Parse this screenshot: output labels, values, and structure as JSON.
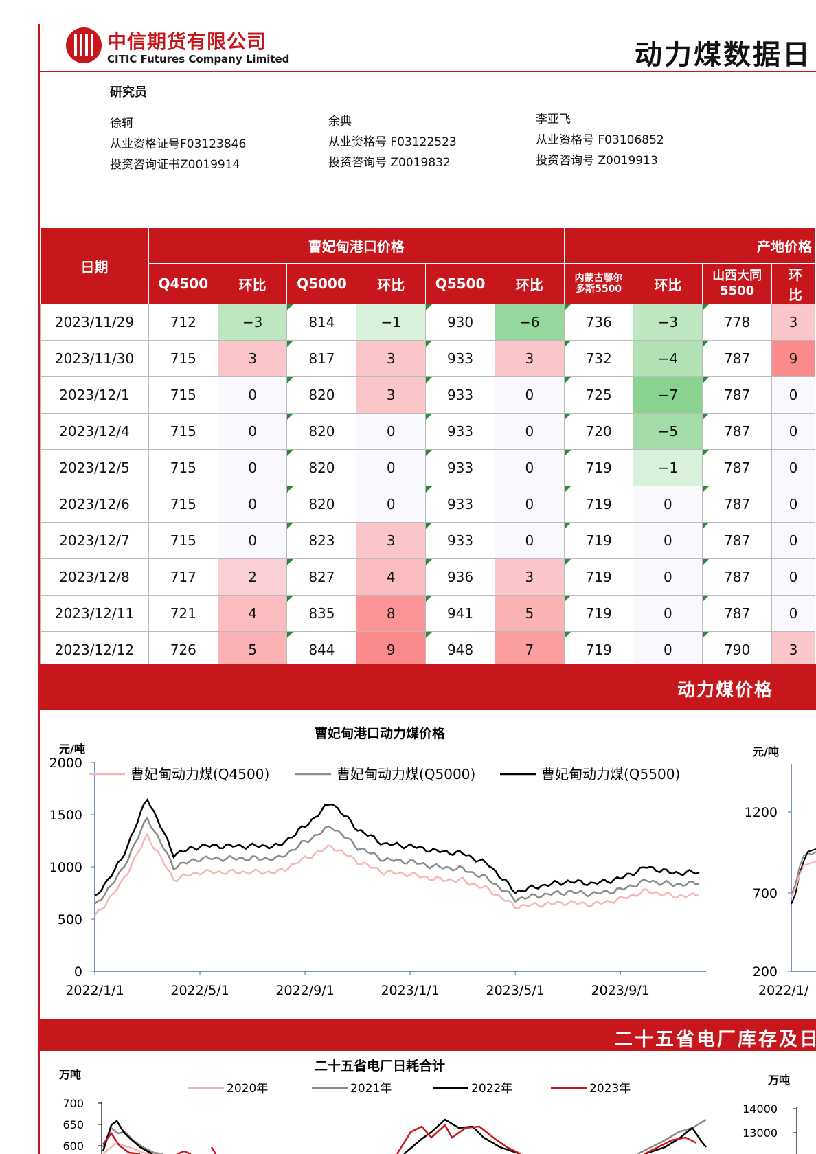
{
  "header": {
    "logo_cn": "中信期货有限公司",
    "logo_en": "CITIC Futures Company Limited",
    "title": "动力煤数据日"
  },
  "researchers": {
    "title": "研究员",
    "people": [
      {
        "name": "徐轲",
        "cert": "从业资格证号F03123846",
        "consult": "投资咨询证书Z0019914"
      },
      {
        "name": "余典",
        "cert": "从业资格号 F03122523",
        "consult": "投资咨询号 Z0019832"
      },
      {
        "name": "李亚飞",
        "cert": "从业资格号 F03106852",
        "consult": "投资咨询号 Z0019913"
      }
    ]
  },
  "price_table": {
    "date_header": "日期",
    "group_port": "曹妃甸港口价格",
    "group_origin": "产地价格",
    "columns": [
      "Q4500",
      "环比",
      "Q5000",
      "环比",
      "Q5500",
      "环比",
      "内蒙古鄂尔多斯5500",
      "环比",
      "山西大同5500",
      "环比"
    ],
    "col_inner_line1": "内蒙古鄂尔",
    "col_inner_line2": "多斯5500",
    "col_shanxi_line1": "山西大同",
    "col_shanxi_line2": "5500",
    "rows": [
      {
        "date": "2023/11/29",
        "v": [
          "712",
          "−3",
          "814",
          "−1",
          "930",
          "−6",
          "736",
          "−3",
          "778",
          "3"
        ]
      },
      {
        "date": "2023/11/30",
        "v": [
          "715",
          "3",
          "817",
          "3",
          "933",
          "3",
          "732",
          "−4",
          "787",
          "9"
        ]
      },
      {
        "date": "2023/12/1",
        "v": [
          "715",
          "0",
          "820",
          "3",
          "933",
          "0",
          "725",
          "−7",
          "787",
          "0"
        ]
      },
      {
        "date": "2023/12/4",
        "v": [
          "715",
          "0",
          "820",
          "0",
          "933",
          "0",
          "720",
          "−5",
          "787",
          "0"
        ]
      },
      {
        "date": "2023/12/5",
        "v": [
          "715",
          "0",
          "820",
          "0",
          "933",
          "0",
          "719",
          "−1",
          "787",
          "0"
        ]
      },
      {
        "date": "2023/12/6",
        "v": [
          "715",
          "0",
          "820",
          "0",
          "933",
          "0",
          "719",
          "0",
          "787",
          "0"
        ]
      },
      {
        "date": "2023/12/7",
        "v": [
          "715",
          "0",
          "823",
          "3",
          "933",
          "0",
          "719",
          "0",
          "787",
          "0"
        ]
      },
      {
        "date": "2023/12/8",
        "v": [
          "717",
          "2",
          "827",
          "4",
          "936",
          "3",
          "719",
          "0",
          "787",
          "0"
        ]
      },
      {
        "date": "2023/12/11",
        "v": [
          "721",
          "4",
          "835",
          "8",
          "941",
          "5",
          "719",
          "0",
          "787",
          "0"
        ]
      },
      {
        "date": "2023/12/12",
        "v": [
          "726",
          "5",
          "844",
          "9",
          "948",
          "7",
          "719",
          "0",
          "790",
          "3"
        ]
      }
    ]
  },
  "banners": {
    "price": "动力煤价格",
    "inventory": "二十五省电厂库存及日"
  },
  "chart_data": [
    {
      "type": "line",
      "title": "曹妃甸港口动力煤价格",
      "ylabel": "元/吨",
      "ylim": [
        0,
        2000
      ],
      "yticks": [
        "0",
        "500",
        "1000",
        "1500",
        "2000"
      ],
      "xticks": [
        "2022/1/1",
        "2022/5/1",
        "2022/9/1",
        "2023/1/1",
        "2023/5/1",
        "2023/9/1"
      ],
      "x": [
        "2022-01",
        "2022-02",
        "2022-03",
        "2022-04",
        "2022-05",
        "2022-06",
        "2022-07",
        "2022-08",
        "2022-09",
        "2022-10",
        "2022-11",
        "2022-12",
        "2023-01",
        "2023-02",
        "2023-03",
        "2023-04",
        "2023-05",
        "2023-06",
        "2023-07",
        "2023-08",
        "2023-09",
        "2023-10",
        "2023-11",
        "2023-12"
      ],
      "series": [
        {
          "name": "曹妃甸动力煤(Q4500)",
          "color": "#f2b8b8",
          "values": [
            520,
            840,
            1300,
            880,
            950,
            950,
            950,
            950,
            1080,
            1200,
            1050,
            950,
            930,
            880,
            870,
            780,
            620,
            640,
            660,
            640,
            690,
            770,
            720,
            726
          ]
        },
        {
          "name": "曹妃甸动力煤(Q5000)",
          "color": "#8a8a8a",
          "values": [
            620,
            950,
            1470,
            1000,
            1080,
            1080,
            1080,
            1080,
            1240,
            1390,
            1190,
            1070,
            1050,
            1000,
            980,
            880,
            690,
            730,
            760,
            740,
            780,
            870,
            830,
            844
          ]
        },
        {
          "name": "曹妃甸动力煤(Q5500)",
          "color": "#000000",
          "values": [
            700,
            1060,
            1660,
            1120,
            1200,
            1200,
            1200,
            1200,
            1390,
            1620,
            1360,
            1220,
            1200,
            1150,
            1130,
            1020,
            760,
            820,
            860,
            840,
            890,
            1000,
            940,
            948
          ]
        }
      ]
    },
    {
      "type": "line",
      "title": "",
      "ylabel": "元/吨",
      "yticks": [
        "200",
        "700",
        "1200"
      ],
      "xticks": [
        "2022/1/"
      ]
    },
    {
      "type": "line",
      "title": "二十五省电厂日耗合计",
      "ylabel": "万吨",
      "yticks": [
        "600",
        "650",
        "700"
      ],
      "legend": [
        "2020年",
        "2021年",
        "2022年",
        "2023年"
      ],
      "legend_colors": [
        "#f2b8b8",
        "#8a8a8a",
        "#000000",
        "#c8161d"
      ]
    },
    {
      "type": "line",
      "title": "",
      "ylabel": "万吨",
      "yticks": [
        "13000",
        "14000"
      ]
    }
  ]
}
